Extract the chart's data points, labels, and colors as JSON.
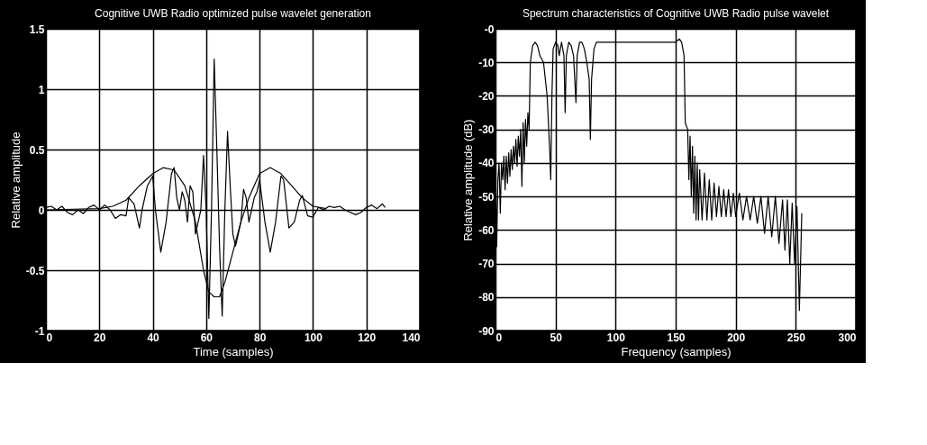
{
  "chart_data": [
    {
      "type": "line",
      "title": "Cognitive UWB Radio optimized pulse wavelet generation",
      "xlabel": "Time (samples)",
      "ylabel": "Relative amplitude",
      "xlim": [
        0,
        140
      ],
      "xticks": [
        0,
        20,
        40,
        60,
        80,
        100,
        120,
        140
      ],
      "ylim": [
        -1,
        1.5
      ],
      "yticks": [
        -1,
        -0.5,
        0,
        0.5,
        1,
        1.5
      ],
      "grid": true,
      "line_style": "solid",
      "series": [
        {
          "color": "#000000",
          "x": [
            0,
            2,
            4,
            6,
            8,
            10,
            12,
            14,
            16,
            18,
            20,
            22,
            24,
            26,
            28,
            30,
            31,
            33,
            35,
            36,
            38,
            40,
            41,
            43,
            45,
            47,
            48,
            49,
            50,
            51,
            52,
            53,
            54,
            55,
            56,
            57,
            58,
            59,
            60,
            61,
            62,
            63,
            64,
            65,
            66,
            67,
            68,
            69,
            70,
            71,
            72,
            73,
            74,
            75,
            76,
            77,
            78,
            79,
            80,
            82,
            84,
            86,
            88,
            89,
            91,
            93,
            95,
            96,
            98,
            100,
            102,
            104,
            106,
            108,
            110,
            112,
            114,
            116,
            118,
            120,
            122,
            124,
            126,
            127
          ],
          "values": [
            0.02,
            0.03,
            0.0,
            0.03,
            -0.02,
            -0.04,
            0.0,
            -0.03,
            0.02,
            0.04,
            0.0,
            0.04,
            0.0,
            -0.07,
            -0.04,
            -0.05,
            0.1,
            0.05,
            -0.15,
            0.0,
            0.2,
            0.28,
            0.0,
            -0.35,
            -0.1,
            0.3,
            0.35,
            0.1,
            0.0,
            0.15,
            0.08,
            -0.1,
            0.2,
            0.15,
            -0.2,
            -0.1,
            0.0,
            0.45,
            0.0,
            -0.9,
            0.0,
            1.25,
            0.5,
            -0.3,
            -0.88,
            0.0,
            0.65,
            0.2,
            -0.2,
            -0.3,
            -0.2,
            -0.1,
            0.17,
            0.1,
            -0.1,
            0.0,
            0.1,
            0.15,
            0.25,
            -0.1,
            -0.35,
            -0.1,
            0.28,
            0.25,
            -0.15,
            -0.1,
            0.08,
            0.12,
            -0.05,
            -0.06,
            0.02,
            0.0,
            0.03,
            0.02,
            0.03,
            0.0,
            -0.02,
            -0.04,
            -0.02,
            0.02,
            0.04,
            0.01,
            0.05,
            0.02
          ]
        },
        {
          "color": "#000000",
          "x": [
            0,
            20,
            25,
            30,
            35,
            40,
            44,
            48,
            52,
            56,
            59,
            61,
            63,
            65,
            67,
            70,
            73,
            76,
            80,
            84,
            88,
            92,
            96,
            100,
            105
          ],
          "values": [
            0,
            0.01,
            0.03,
            0.08,
            0.2,
            0.3,
            0.35,
            0.33,
            0.2,
            -0.1,
            -0.5,
            -0.68,
            -0.72,
            -0.72,
            -0.6,
            -0.35,
            -0.1,
            0.1,
            0.3,
            0.35,
            0.3,
            0.2,
            0.1,
            0.03,
            0.01
          ]
        }
      ]
    },
    {
      "type": "line",
      "title": "Spectrum characteristics of Cognitive UWB Radio pulse wavelet",
      "xlabel": "Frequency (samples)",
      "ylabel": "Relative amplitude (dB)",
      "xlim": [
        0,
        300
      ],
      "xticks": [
        0,
        50,
        100,
        150,
        200,
        250,
        300
      ],
      "ylim": [
        -90,
        0
      ],
      "yticks": [
        -90,
        -80,
        -70,
        -60,
        -50,
        -40,
        -30,
        -20,
        -10,
        {
          "value": 0,
          "label": "-0"
        }
      ],
      "grid": true,
      "line_style": "solid",
      "series": [
        {
          "color": "#000000",
          "x": [
            0,
            1,
            2,
            3,
            4,
            5,
            6,
            7,
            8,
            9,
            10,
            11,
            12,
            13,
            14,
            15,
            16,
            17,
            18,
            19,
            20,
            21,
            22,
            23,
            24,
            25,
            26,
            27,
            28,
            29,
            31,
            33,
            35,
            37,
            40,
            43,
            45,
            46,
            47,
            48,
            50,
            52,
            53,
            55,
            57,
            58,
            59,
            61,
            63,
            65,
            67,
            68,
            70,
            72,
            74,
            76,
            78,
            79,
            80,
            82,
            84,
            90,
            100,
            110,
            120,
            130,
            140,
            150,
            153,
            155,
            157,
            158,
            160,
            161,
            162,
            163,
            164,
            165,
            166,
            167,
            168,
            169,
            170,
            172,
            174,
            176,
            178,
            180,
            182,
            184,
            186,
            188,
            190,
            192,
            194,
            196,
            198,
            200,
            203,
            206,
            209,
            212,
            215,
            218,
            221,
            224,
            227,
            230,
            233,
            236,
            239,
            241,
            243,
            245,
            247,
            249,
            251,
            253,
            255
          ],
          "values": [
            -40,
            -65,
            -45,
            -40,
            -55,
            -40,
            -45,
            -38,
            -48,
            -38,
            -46,
            -37,
            -44,
            -36,
            -42,
            -35,
            -40,
            -33,
            -41,
            -32,
            -38,
            -30,
            -47,
            -28,
            -40,
            -27,
            -35,
            -25,
            -30,
            -10,
            -5,
            -4,
            -5,
            -8,
            -10,
            -20,
            -35,
            -45,
            -20,
            -6,
            -4,
            -5,
            -8,
            -4,
            -8,
            -25,
            -8,
            -4,
            -5,
            -8,
            -22,
            -8,
            -4,
            -4,
            -6,
            -10,
            -15,
            -33,
            -15,
            -6,
            -4,
            -4,
            -4,
            -4,
            -4,
            -4,
            -4,
            -4,
            -3,
            -4,
            -8,
            -28,
            -30,
            -45,
            -32,
            -50,
            -35,
            -55,
            -38,
            -57,
            -40,
            -57,
            -42,
            -57,
            -43,
            -57,
            -45,
            -57,
            -46,
            -56,
            -47,
            -56,
            -48,
            -56,
            -48,
            -56,
            -49,
            -56,
            -49,
            -57,
            -50,
            -57,
            -50,
            -58,
            -50,
            -61,
            -50,
            -62,
            -50,
            -64,
            -51,
            -66,
            -51,
            -70,
            -52,
            -70,
            -53,
            -84,
            -55
          ]
        }
      ]
    }
  ]
}
